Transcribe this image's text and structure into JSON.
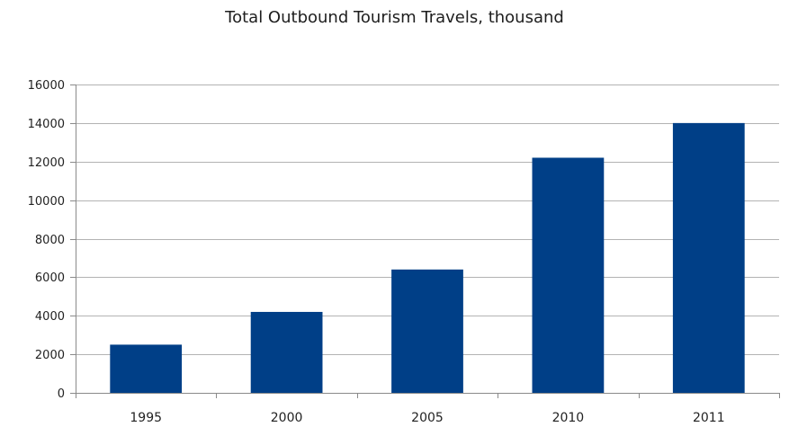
{
  "chart_data": {
    "type": "bar",
    "title": "Total Outbound Tourism Travels, thousand",
    "xlabel": "",
    "ylabel": "",
    "categories": [
      "1995",
      "2000",
      "2005",
      "2010",
      "2011"
    ],
    "values": [
      2500,
      4200,
      6400,
      12200,
      14000
    ],
    "ylim": [
      0,
      16000
    ],
    "yticks": [
      0,
      2000,
      4000,
      6000,
      8000,
      10000,
      12000,
      14000,
      16000
    ],
    "grid": true,
    "legend": "none",
    "bar_color": "#003f87",
    "grid_color": "#b3b3b3"
  }
}
